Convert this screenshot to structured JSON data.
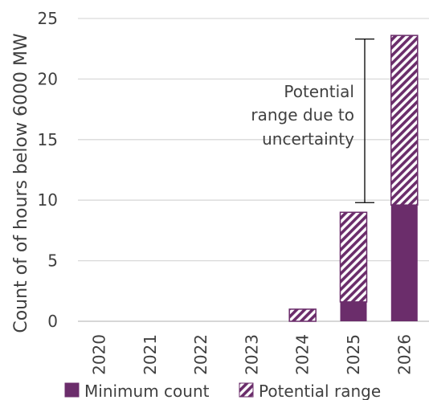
{
  "chart_data": {
    "type": "bar",
    "stacked": true,
    "categories": [
      "2020",
      "2021",
      "2022",
      "2023",
      "2024",
      "2025",
      "2026"
    ],
    "series": [
      {
        "name": "Minimum count",
        "values": [
          0,
          0,
          0,
          0,
          0,
          1.6,
          9.6
        ],
        "color": "#6b2d6b",
        "pattern": "solid"
      },
      {
        "name": "Potential range",
        "values": [
          0,
          0,
          0,
          0,
          1.0,
          7.4,
          14.0
        ],
        "color": "#6b2d6b",
        "pattern": "diagonal-hatch"
      }
    ],
    "title": "",
    "xlabel": "",
    "ylabel": "Count of of hours below 6000 MW",
    "ylim": [
      0,
      25
    ],
    "yticks": [
      0,
      5,
      10,
      15,
      20,
      25
    ],
    "grid": true,
    "legend_position": "bottom",
    "annotation": {
      "lines": [
        "Potential",
        "range due to",
        "uncertainty"
      ],
      "bracket_from": 9.8,
      "bracket_to": 23.3
    }
  },
  "colors": {
    "bar": "#6b2d6b",
    "grid": "#d9d9d9",
    "text": "#404040",
    "axis": "#bfbfbf"
  }
}
